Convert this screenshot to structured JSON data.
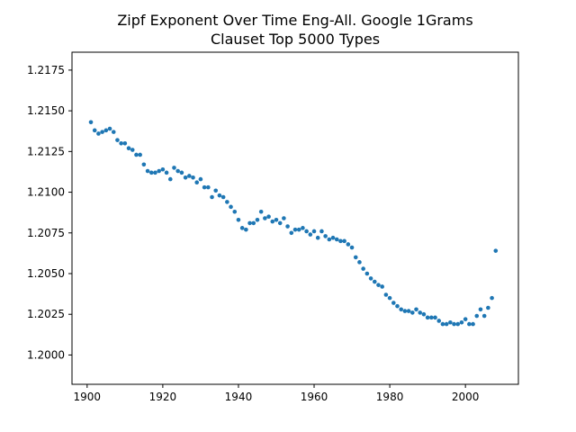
{
  "chart_data": {
    "type": "scatter",
    "title_lines": [
      "Zipf Exponent Over Time Eng-All. Google 1Grams",
      "Clauset Top 5000 Types"
    ],
    "xlabel": "",
    "ylabel": "",
    "xlim": [
      1896,
      2014
    ],
    "ylim": [
      1.1982,
      1.2186
    ],
    "x_ticks": [
      1900,
      1920,
      1940,
      1960,
      1980,
      2000
    ],
    "x_tick_labels": [
      "1900",
      "1920",
      "1940",
      "1960",
      "1980",
      "2000"
    ],
    "y_ticks": [
      1.2,
      1.2025,
      1.205,
      1.2075,
      1.21,
      1.2125,
      1.215,
      1.2175
    ],
    "y_tick_labels": [
      "1.2000",
      "1.2025",
      "1.2050",
      "1.2075",
      "1.2100",
      "1.2125",
      "1.2150",
      "1.2175"
    ],
    "grid": false,
    "marker_color": "#1f77b4",
    "series": [
      {
        "points": [
          [
            1901,
            1.2143
          ],
          [
            1902,
            1.2138
          ],
          [
            1903,
            1.2136
          ],
          [
            1904,
            1.2137
          ],
          [
            1905,
            1.2138
          ],
          [
            1906,
            1.2139
          ],
          [
            1907,
            1.2137
          ],
          [
            1908,
            1.2132
          ],
          [
            1909,
            1.213
          ],
          [
            1910,
            1.213
          ],
          [
            1911,
            1.2127
          ],
          [
            1912,
            1.2126
          ],
          [
            1913,
            1.2123
          ],
          [
            1914,
            1.2123
          ],
          [
            1915,
            1.2117
          ],
          [
            1916,
            1.2113
          ],
          [
            1917,
            1.2112
          ],
          [
            1918,
            1.2112
          ],
          [
            1919,
            1.2113
          ],
          [
            1920,
            1.2114
          ],
          [
            1921,
            1.2112
          ],
          [
            1922,
            1.2108
          ],
          [
            1923,
            1.2115
          ],
          [
            1924,
            1.2113
          ],
          [
            1925,
            1.2112
          ],
          [
            1926,
            1.2109
          ],
          [
            1927,
            1.211
          ],
          [
            1928,
            1.2109
          ],
          [
            1929,
            1.2106
          ],
          [
            1930,
            1.2108
          ],
          [
            1931,
            1.2103
          ],
          [
            1932,
            1.2103
          ],
          [
            1933,
            1.2097
          ],
          [
            1934,
            1.2101
          ],
          [
            1935,
            1.2098
          ],
          [
            1936,
            1.2097
          ],
          [
            1937,
            1.2094
          ],
          [
            1938,
            1.2091
          ],
          [
            1939,
            1.2088
          ],
          [
            1940,
            1.2083
          ],
          [
            1941,
            1.2078
          ],
          [
            1942,
            1.2077
          ],
          [
            1943,
            1.2081
          ],
          [
            1944,
            1.2081
          ],
          [
            1945,
            1.2083
          ],
          [
            1946,
            1.2088
          ],
          [
            1947,
            1.2084
          ],
          [
            1948,
            1.2085
          ],
          [
            1949,
            1.2082
          ],
          [
            1950,
            1.2083
          ],
          [
            1951,
            1.2081
          ],
          [
            1952,
            1.2084
          ],
          [
            1953,
            1.2079
          ],
          [
            1954,
            1.2075
          ],
          [
            1955,
            1.2077
          ],
          [
            1956,
            1.2077
          ],
          [
            1957,
            1.2078
          ],
          [
            1958,
            1.2076
          ],
          [
            1959,
            1.2074
          ],
          [
            1960,
            1.2076
          ],
          [
            1961,
            1.2072
          ],
          [
            1962,
            1.2076
          ],
          [
            1963,
            1.2073
          ],
          [
            1964,
            1.2071
          ],
          [
            1965,
            1.2072
          ],
          [
            1966,
            1.2071
          ],
          [
            1967,
            1.207
          ],
          [
            1968,
            1.207
          ],
          [
            1969,
            1.2068
          ],
          [
            1970,
            1.2066
          ],
          [
            1971,
            1.206
          ],
          [
            1972,
            1.2057
          ],
          [
            1973,
            1.2053
          ],
          [
            1974,
            1.205
          ],
          [
            1975,
            1.2047
          ],
          [
            1976,
            1.2045
          ],
          [
            1977,
            1.2043
          ],
          [
            1978,
            1.2042
          ],
          [
            1979,
            1.2037
          ],
          [
            1980,
            1.2035
          ],
          [
            1981,
            1.2032
          ],
          [
            1982,
            1.203
          ],
          [
            1983,
            1.2028
          ],
          [
            1984,
            1.2027
          ],
          [
            1985,
            1.2027
          ],
          [
            1986,
            1.2026
          ],
          [
            1987,
            1.2028
          ],
          [
            1988,
            1.2026
          ],
          [
            1989,
            1.2025
          ],
          [
            1990,
            1.2023
          ],
          [
            1991,
            1.2023
          ],
          [
            1992,
            1.2023
          ],
          [
            1993,
            1.2021
          ],
          [
            1994,
            1.2019
          ],
          [
            1995,
            1.2019
          ],
          [
            1996,
            1.202
          ],
          [
            1997,
            1.2019
          ],
          [
            1998,
            1.2019
          ],
          [
            1999,
            1.202
          ],
          [
            2000,
            1.2022
          ],
          [
            2001,
            1.2019
          ],
          [
            2002,
            1.2019
          ],
          [
            2003,
            1.2024
          ],
          [
            2004,
            1.2028
          ],
          [
            2005,
            1.2024
          ],
          [
            2006,
            1.2029
          ],
          [
            2007,
            1.2035
          ],
          [
            2008,
            1.2064
          ]
        ]
      }
    ]
  }
}
